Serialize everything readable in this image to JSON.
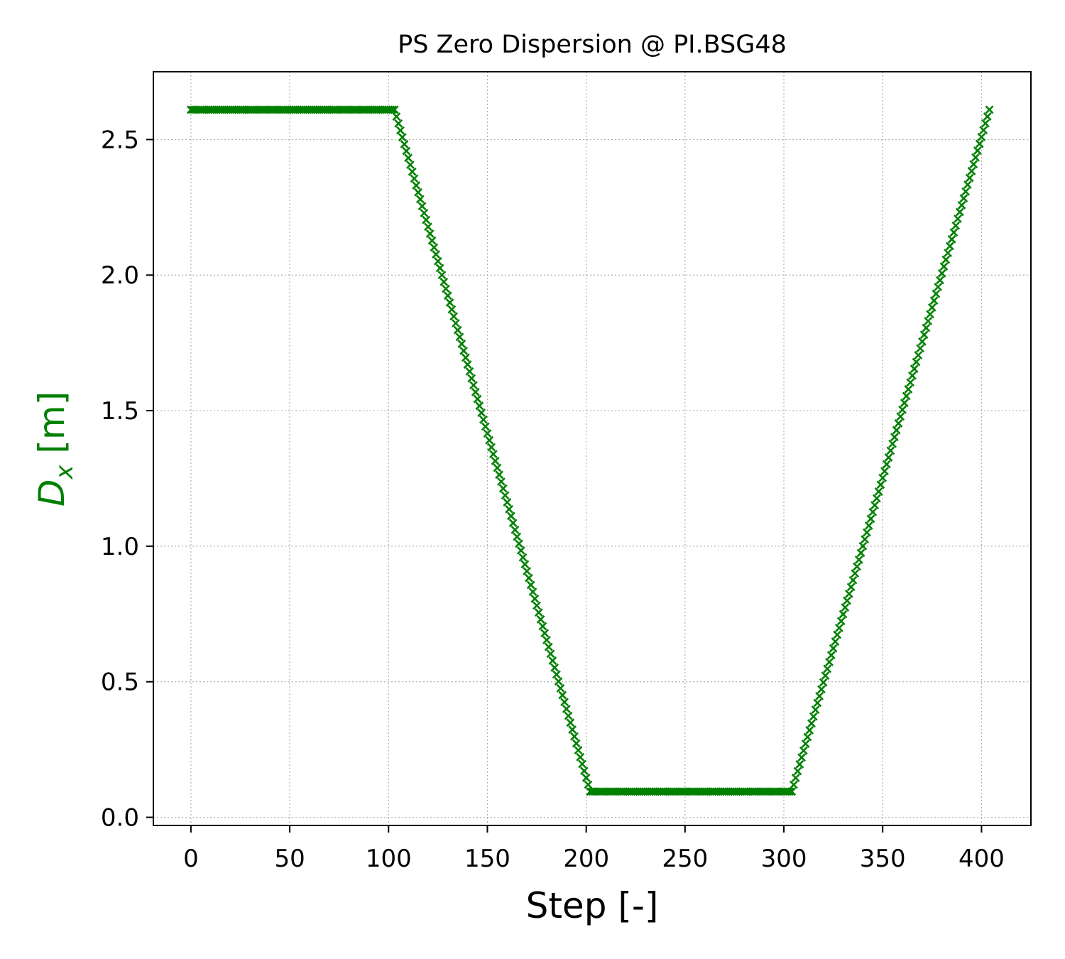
{
  "chart_data": {
    "type": "scatter",
    "title": "PS Zero Dispersion @ PI.BSG48",
    "xlabel": "Step [-]",
    "ylabel": {
      "symbol": "D",
      "subscript": "x",
      "unit": " [m]"
    },
    "xlim": [
      -19,
      425
    ],
    "ylim": [
      -0.03,
      2.75
    ],
    "xticks": [
      0,
      50,
      100,
      150,
      200,
      250,
      300,
      350,
      400
    ],
    "xtick_labels": [
      "0",
      "50",
      "100",
      "150",
      "200",
      "250",
      "300",
      "350",
      "400"
    ],
    "yticks": [
      0.0,
      0.5,
      1.0,
      1.5,
      2.0,
      2.5
    ],
    "ytick_labels": [
      "0.0",
      "0.5",
      "1.0",
      "1.5",
      "2.0",
      "2.5"
    ],
    "grid": true,
    "series": [
      {
        "marker": "x",
        "color": "#008000",
        "segments": [
          {
            "x_start": 0,
            "x_end": 103,
            "y_start": 2.61,
            "y_end": 2.61
          },
          {
            "x_start": 103,
            "x_end": 202,
            "y_start": 2.61,
            "y_end": 0.095
          },
          {
            "x_start": 202,
            "x_end": 304,
            "y_start": 0.095,
            "y_end": 0.095
          },
          {
            "x_start": 304,
            "x_end": 404,
            "y_start": 0.095,
            "y_end": 2.61
          }
        ]
      }
    ]
  },
  "colors": {
    "series": "#008000",
    "ylabel": "#008000",
    "grid": "#b0b0b0",
    "axes": "#000000"
  }
}
